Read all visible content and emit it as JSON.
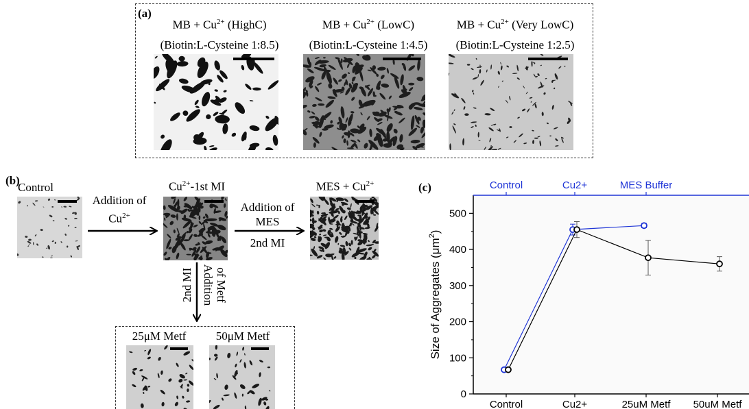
{
  "panel_a": {
    "letter": "(a)",
    "images": [
      {
        "line1": "MB + Cu",
        "sup": "2+",
        "line1_tail": " (HighC)",
        "line2": "(Biotin:L-Cysteine 1:8.5)",
        "tone": "high"
      },
      {
        "line1": "MB + Cu",
        "sup": "2+",
        "line1_tail": " (LowC)",
        "line2": "(Biotin:L-Cysteine 1:4.5)",
        "tone": "low"
      },
      {
        "line1": "MB + Cu",
        "sup": "2+",
        "line1_tail": " (Very LowC)",
        "line2": "(Biotin:L-Cysteine 1:2.5)",
        "tone": "verylow"
      }
    ]
  },
  "panel_b": {
    "letter": "(b)",
    "control_label": "Control",
    "cu_label": "Cu",
    "cu_sup": "2+",
    "cu_tail": "-1st MI",
    "mes_label": "MES + Cu",
    "mes_sup": "2+",
    "arrow1_line1": "Addition of",
    "arrow1_line2": "Cu",
    "arrow1_sup": "2+",
    "arrow2_line1": "Addition of",
    "arrow2_line2": "MES",
    "arrow2_line3": "2nd MI",
    "arrow3_left": "2nd MI",
    "arrow3_right1": "Addition",
    "arrow3_right2": "of Metf",
    "metf25_label": "25μM Metf",
    "metf50_label": "50μM Metf"
  },
  "panel_c": {
    "letter": "(c)",
    "chart_data": {
      "type": "line",
      "ylabel_main": "Size of Aggregates (μm",
      "ylabel_sup": "2",
      "ylabel_end": ")",
      "ylim": [
        0,
        550
      ],
      "yticks": [
        0,
        100,
        200,
        300,
        400,
        500
      ],
      "bottom_categories": [
        "Control",
        "Cu2+",
        "25uM Metf",
        "50uM Metf"
      ],
      "top_categories": [
        "Control",
        "Cu2+",
        "MES Buffer"
      ],
      "series": [
        {
          "color": "#000000",
          "x": [
            0,
            1,
            2,
            3
          ],
          "values": [
            67,
            455,
            377,
            360
          ],
          "errors": [
            0,
            22,
            48,
            20
          ]
        },
        {
          "color": "#1f35d6",
          "x": [
            0,
            1,
            2
          ],
          "values": [
            67,
            455,
            466
          ],
          "errors": [
            0,
            15,
            6
          ]
        }
      ],
      "top_axis_color": "#1f35d6"
    }
  }
}
